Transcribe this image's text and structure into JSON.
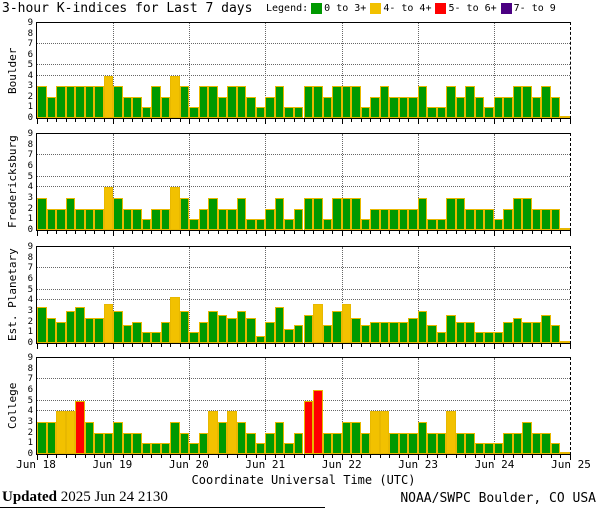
{
  "title": "3-hour K-indices for Last 7 days",
  "legend": {
    "label": "Legend:",
    "items": [
      {
        "label": "0 to 3+",
        "color": "#009900"
      },
      {
        "label": "4- to 4+",
        "color": "#F2C100"
      },
      {
        "label": "5- to 6+",
        "color": "#FF0000"
      },
      {
        "label": "7- to 9",
        "color": "#4B0082"
      }
    ]
  },
  "x_axis": {
    "title": "Coordinate Universal Time (UTC)",
    "day_labels": [
      "Jun 18",
      "Jun 19",
      "Jun 20",
      "Jun 21",
      "Jun 22",
      "Jun 23",
      "Jun 24",
      "Jun 25"
    ]
  },
  "y_axis": {
    "ticks": [
      0,
      1,
      2,
      3,
      4,
      5,
      6,
      7,
      8,
      9
    ],
    "gridlines_at": [
      4,
      5,
      7
    ],
    "max": 9
  },
  "footer": {
    "updated_label": "Updated",
    "updated_value": "2025 Jun 24 2130",
    "credit": "NOAA/SWPC Boulder, CO USA"
  },
  "chart_data": {
    "type": "bar",
    "interval_hours": 3,
    "bars_per_day": 8,
    "ylim": [
      0,
      9
    ],
    "grid_k_levels": [
      4,
      5,
      7
    ],
    "day_labels": [
      "Jun 18",
      "Jun 19",
      "Jun 20",
      "Jun 21",
      "Jun 22",
      "Jun 23",
      "Jun 24",
      "Jun 25"
    ],
    "color_thresholds": [
      {
        "max": 3.49,
        "color": "#009900"
      },
      {
        "max": 4.66,
        "color": "#F2C100"
      },
      {
        "max": 6.66,
        "color": "#FF0000"
      },
      {
        "max": 9.0,
        "color": "#4B0082"
      }
    ],
    "series": [
      {
        "station": "Boulder",
        "values": [
          3,
          2,
          3,
          3,
          3,
          3,
          3,
          4,
          3,
          2,
          2,
          1,
          3,
          2,
          4,
          3,
          1,
          3,
          3,
          2,
          3,
          3,
          2,
          1,
          2,
          3,
          1,
          1,
          3,
          3,
          2,
          3,
          3,
          3,
          1,
          2,
          3,
          2,
          2,
          2,
          3,
          1,
          1,
          3,
          2,
          3,
          2,
          1,
          2,
          2,
          3,
          3,
          2,
          3,
          2,
          0.2
        ]
      },
      {
        "station": "Fredericksburg",
        "values": [
          3,
          2,
          2,
          3,
          2,
          2,
          2,
          4,
          3,
          2,
          2,
          1,
          2,
          2,
          4,
          3,
          1,
          2,
          3,
          2,
          2,
          3,
          1,
          1,
          2,
          3,
          1,
          2,
          3,
          3,
          1,
          3,
          3,
          3,
          1,
          2,
          2,
          2,
          2,
          2,
          3,
          1,
          1,
          3,
          3,
          2,
          2,
          2,
          1,
          2,
          3,
          3,
          2,
          2,
          2,
          0.2
        ]
      },
      {
        "station": "Est. Planetary",
        "values": [
          3.33,
          2.33,
          2,
          3,
          3.33,
          2.33,
          2.33,
          3.67,
          3,
          1.67,
          2,
          1,
          1,
          2,
          4.33,
          3,
          1,
          2,
          3,
          2.67,
          2.33,
          3,
          2.33,
          0.67,
          2,
          3.33,
          1.33,
          1.67,
          2.67,
          3.67,
          1.67,
          3,
          3.67,
          2.33,
          1.67,
          2,
          2,
          2,
          2,
          2.33,
          3,
          1.67,
          1,
          2.67,
          2,
          2,
          1,
          1,
          1,
          2,
          2.33,
          2,
          2,
          2.67,
          1.67,
          0.2
        ]
      },
      {
        "station": "College",
        "values": [
          3,
          3,
          4,
          4,
          5,
          3,
          2,
          2,
          3,
          2,
          2,
          1,
          1,
          1,
          3,
          2,
          1,
          2,
          4,
          3,
          4,
          3,
          2,
          1,
          2,
          3,
          1,
          2,
          5,
          6,
          2,
          2,
          3,
          3,
          2,
          4,
          4,
          2,
          2,
          2,
          3,
          2,
          2,
          4,
          2,
          2,
          1,
          1,
          1,
          2,
          2,
          3,
          2,
          2,
          1,
          0.2
        ]
      }
    ]
  }
}
